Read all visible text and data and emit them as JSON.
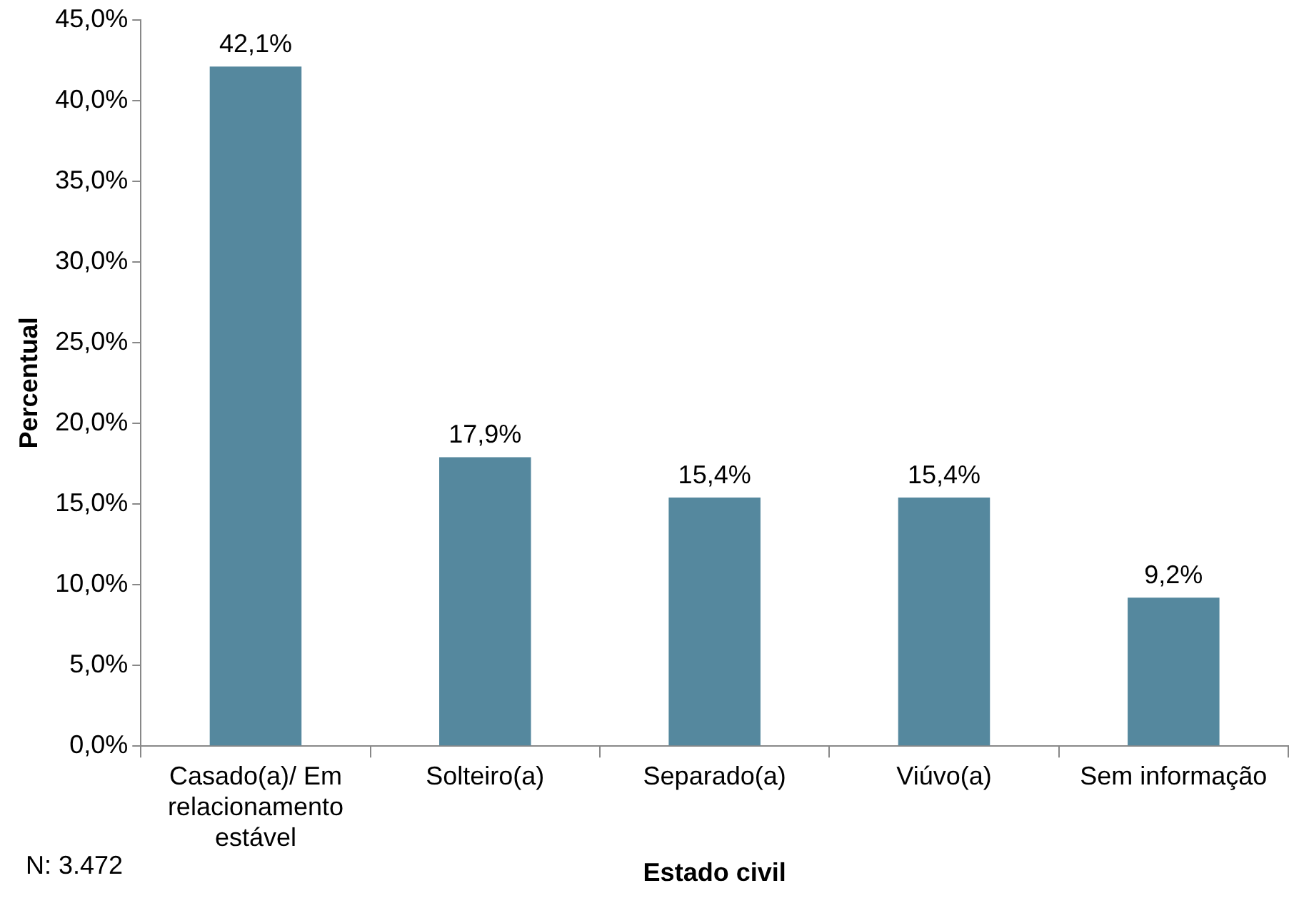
{
  "chart_data": {
    "type": "bar",
    "xlabel": "Estado civil",
    "ylabel": "Percentual",
    "categories": [
      "Casado(a)/ Em relacionamento estável",
      "Solteiro(a)",
      "Separado(a)",
      "Viúvo(a)",
      "Sem informação"
    ],
    "values": [
      42.1,
      17.9,
      15.4,
      15.4,
      9.2
    ],
    "value_labels": [
      "42,1%",
      "17,9%",
      "15,4%",
      "15,4%",
      "9,2%"
    ],
    "color": "#55889e",
    "ylim": [
      0,
      45
    ],
    "yticks": [
      {
        "value": 0,
        "label": "0,0%"
      },
      {
        "value": 5,
        "label": "5,0%"
      },
      {
        "value": 10,
        "label": "10,0%"
      },
      {
        "value": 15,
        "label": "15,0%"
      },
      {
        "value": 20,
        "label": "20,0%"
      },
      {
        "value": 25,
        "label": "25,0%"
      },
      {
        "value": 30,
        "label": "30,0%"
      },
      {
        "value": 35,
        "label": "35,0%"
      },
      {
        "value": 40,
        "label": "40,0%"
      },
      {
        "value": 45,
        "label": "45,0%"
      }
    ],
    "grid": false,
    "legend": false,
    "annotations": [
      "N: 3.472"
    ]
  }
}
